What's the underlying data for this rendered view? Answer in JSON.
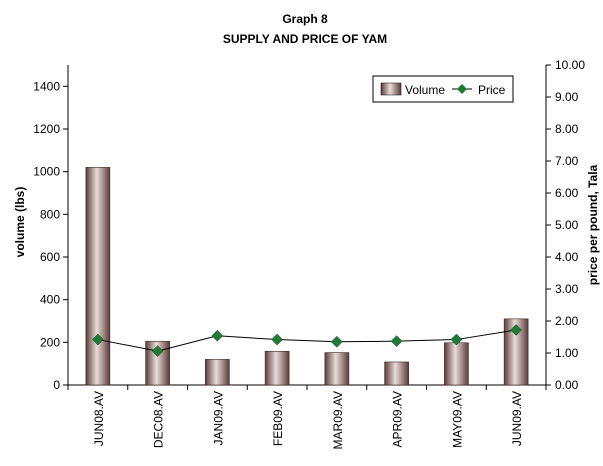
{
  "chart_data": {
    "type": "bar",
    "title": "Graph 8",
    "subtitle": "SUPPLY AND PRICE OF YAM",
    "categories": [
      "JUN08.AV",
      "DEC08.AV",
      "JAN09.AV",
      "FEB09.AV",
      "MAR09.AV",
      "APR09.AV",
      "MAY09.AV",
      "JUN09.AV"
    ],
    "ylabel": "volume (lbs)",
    "y2label": "price per pound, Tala",
    "ylim": [
      0,
      1500
    ],
    "y2lim": [
      0,
      10
    ],
    "yticks": [
      "0",
      "200",
      "400",
      "600",
      "800",
      "1000",
      "1200",
      "1400"
    ],
    "y2ticks": [
      "0.00",
      "1.00",
      "2.00",
      "3.00",
      "4.00",
      "5.00",
      "6.00",
      "7.00",
      "8.00",
      "9.00",
      "10.00"
    ],
    "series": [
      {
        "name": "Volume",
        "type": "bar",
        "axis": "left",
        "color": "#7a5a57",
        "values": [
          1020,
          205,
          120,
          158,
          152,
          108,
          198,
          310
        ]
      },
      {
        "name": "Price",
        "type": "line",
        "axis": "right",
        "color": "#1f7a35",
        "values": [
          1.42,
          1.06,
          1.54,
          1.42,
          1.35,
          1.37,
          1.42,
          1.72
        ]
      }
    ],
    "legend_position": "top-right",
    "grid": false
  }
}
